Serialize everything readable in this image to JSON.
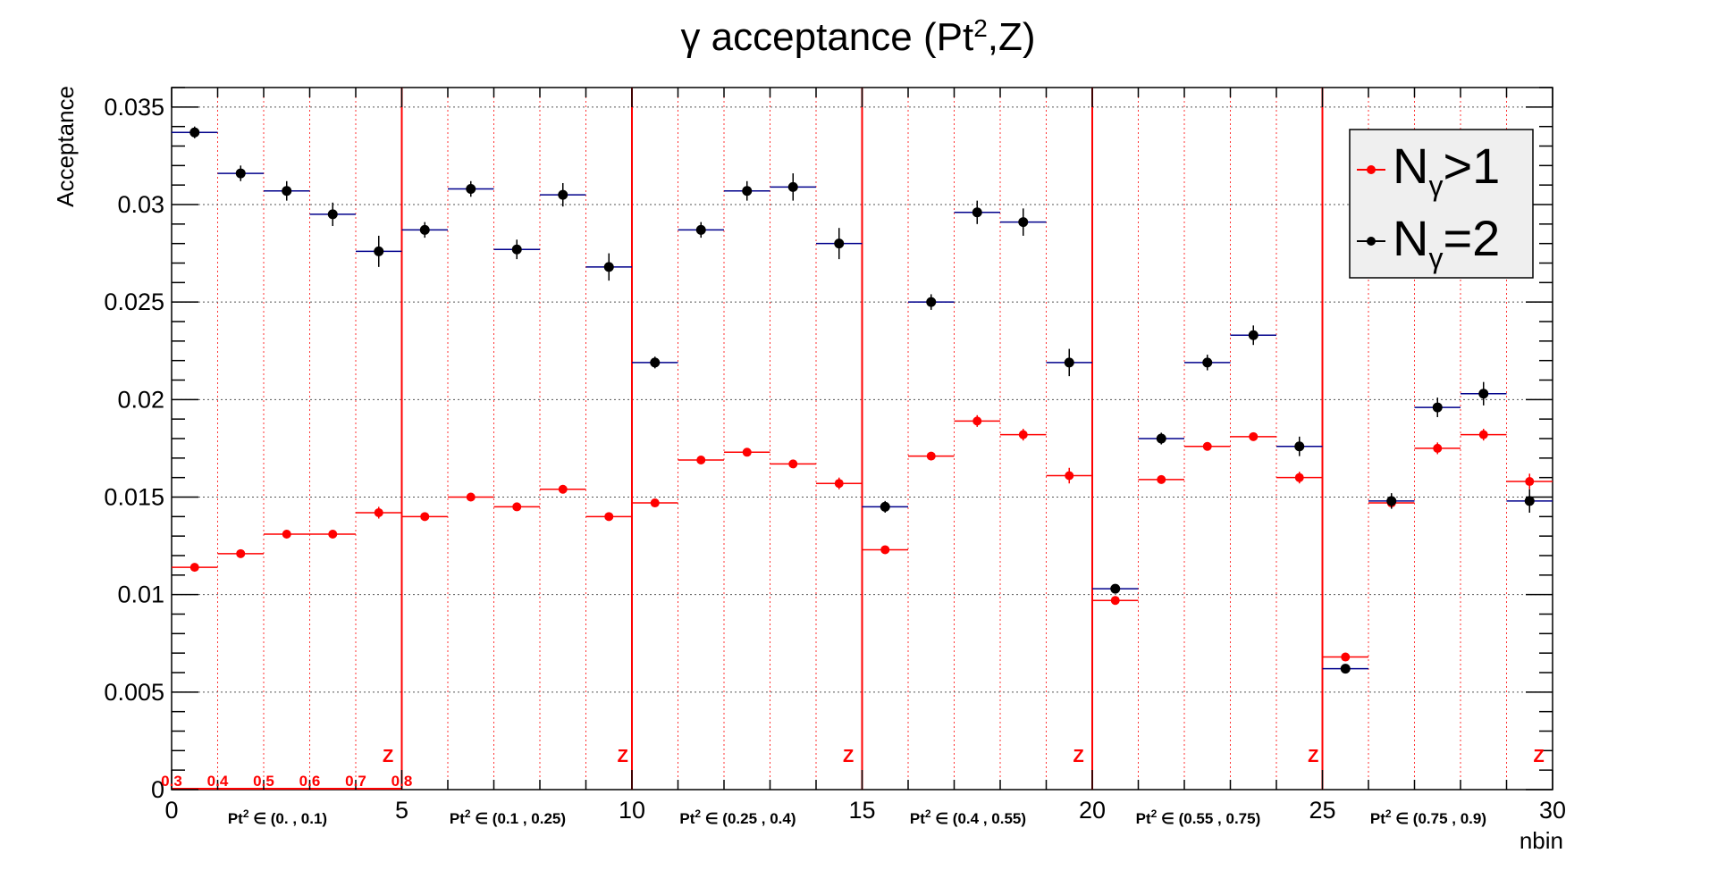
{
  "chart_data": {
    "type": "scatter",
    "title_prefix": "γ acceptance (Pt",
    "title_sup": "2",
    "title_suffix": ",Z)",
    "xlabel": "nbin",
    "ylabel": "Acceptance",
    "xlim": [
      0,
      30
    ],
    "ylim": [
      0,
      0.036
    ],
    "x_ticks": [
      "0",
      "5",
      "10",
      "15",
      "20",
      "25",
      "30"
    ],
    "y_ticks": [
      "0",
      "0.005",
      "0.01",
      "0.015",
      "0.02",
      "0.025",
      "0.03",
      "0.035"
    ],
    "grid": true,
    "legend_position": "top-right",
    "colors": {
      "red_series": "#ff0000",
      "black_series": "#000000",
      "black_xerr": "#00008b",
      "grid": "#d0d0d0",
      "red_grid": "#ff3333"
    },
    "series": [
      {
        "name_main": "N",
        "name_sub": "γ",
        "name_rest": ">1",
        "color": "#ff0000",
        "x": [
          0.5,
          1.5,
          2.5,
          3.5,
          4.5,
          5.5,
          6.5,
          7.5,
          8.5,
          9.5,
          10.5,
          11.5,
          12.5,
          13.5,
          14.5,
          15.5,
          16.5,
          17.5,
          18.5,
          19.5,
          20.5,
          21.5,
          22.5,
          23.5,
          24.5,
          25.5,
          26.5,
          27.5,
          28.5,
          29.5
        ],
        "values": [
          0.0114,
          0.0121,
          0.0131,
          0.0131,
          0.0142,
          0.014,
          0.015,
          0.0145,
          0.0154,
          0.014,
          0.0147,
          0.0169,
          0.0173,
          0.0167,
          0.0157,
          0.0123,
          0.0171,
          0.0189,
          0.0182,
          0.0161,
          0.0097,
          0.0159,
          0.0176,
          0.0181,
          0.016,
          0.0068,
          0.0147,
          0.0175,
          0.0182,
          0.0158
        ],
        "errors": [
          0.0002,
          0.0002,
          0.0002,
          0.0002,
          0.0003,
          0.0002,
          0.0002,
          0.0002,
          0.0002,
          0.0002,
          0.0002,
          0.0002,
          0.0002,
          0.0002,
          0.0003,
          0.0002,
          0.0002,
          0.0003,
          0.0003,
          0.0004,
          0.0002,
          0.0002,
          0.0002,
          0.0002,
          0.0003,
          0.0002,
          0.0002,
          0.0003,
          0.0003,
          0.0004
        ]
      },
      {
        "name_main": "N",
        "name_sub": "γ",
        "name_rest": "=2",
        "color": "#000000",
        "x": [
          0.5,
          1.5,
          2.5,
          3.5,
          4.5,
          5.5,
          6.5,
          7.5,
          8.5,
          9.5,
          10.5,
          11.5,
          12.5,
          13.5,
          14.5,
          15.5,
          16.5,
          17.5,
          18.5,
          19.5,
          20.5,
          21.5,
          22.5,
          23.5,
          24.5,
          25.5,
          26.5,
          27.5,
          28.5,
          29.5
        ],
        "values": [
          0.0337,
          0.0316,
          0.0307,
          0.0295,
          0.0276,
          0.0287,
          0.0308,
          0.0277,
          0.0305,
          0.0268,
          0.0219,
          0.0287,
          0.0307,
          0.0309,
          0.028,
          0.0145,
          0.025,
          0.0296,
          0.0291,
          0.0219,
          0.0103,
          0.018,
          0.0219,
          0.0233,
          0.0176,
          0.0062,
          0.0148,
          0.0196,
          0.0203,
          0.0148
        ],
        "errors": [
          0.0003,
          0.0004,
          0.0005,
          0.0006,
          0.0008,
          0.0004,
          0.0004,
          0.0005,
          0.0006,
          0.0007,
          0.0003,
          0.0004,
          0.0005,
          0.0007,
          0.0008,
          0.0003,
          0.0004,
          0.0006,
          0.0007,
          0.0007,
          0.0002,
          0.0003,
          0.0004,
          0.0005,
          0.0005,
          0.0002,
          0.0004,
          0.0005,
          0.0006,
          0.0006
        ]
      }
    ],
    "section_boundaries": [
      5,
      10,
      15,
      20,
      25
    ],
    "z_marker_label": "Z",
    "z_marker_x": [
      4.7,
      9.8,
      14.7,
      19.7,
      24.8,
      29.7
    ],
    "z_ticks": [
      "0.3",
      "0.4",
      "0.5",
      "0.6",
      "0.7",
      "0.8"
    ],
    "z_tick_x": [
      0,
      1,
      2,
      3,
      4,
      5
    ],
    "pt_ranges": [
      {
        "x": 2.3,
        "prefix": "Pt",
        "sup": "2",
        "range": " ∈ (0. , 0.1)"
      },
      {
        "x": 7.3,
        "prefix": "Pt",
        "sup": "2",
        "range": " ∈ (0.1 , 0.25)"
      },
      {
        "x": 12.3,
        "prefix": "Pt",
        "sup": "2",
        "range": " ∈ (0.25 , 0.4)"
      },
      {
        "x": 17.3,
        "prefix": "Pt",
        "sup": "2",
        "range": " ∈ (0.4 , 0.55)"
      },
      {
        "x": 22.3,
        "prefix": "Pt",
        "sup": "2",
        "range": " ∈ (0.55 , 0.75)"
      },
      {
        "x": 27.3,
        "prefix": "Pt",
        "sup": "2",
        "range": " ∈ (0.75 , 0.9)"
      }
    ]
  }
}
